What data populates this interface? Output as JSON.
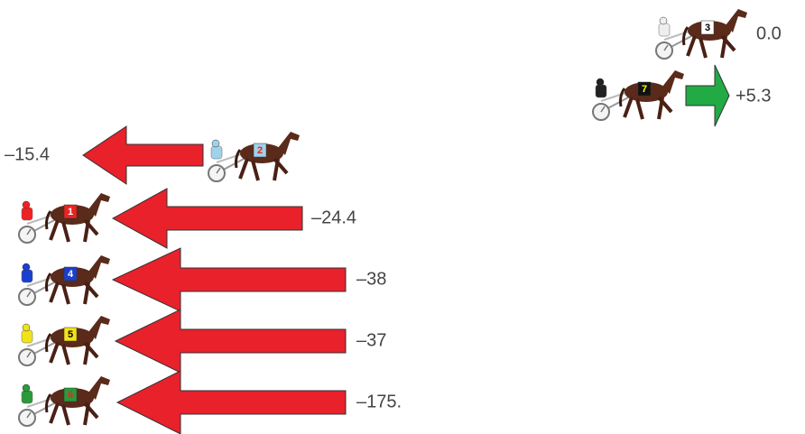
{
  "entries": [
    {
      "number": "3",
      "label": "0.0"
    },
    {
      "number": "7",
      "label": "+5.3"
    },
    {
      "number": "2",
      "label": "–15.4"
    },
    {
      "number": "1",
      "label": "–24.4"
    },
    {
      "number": "4",
      "label": "–38"
    },
    {
      "number": "5",
      "label": "–37"
    },
    {
      "number": "6",
      "label": "–175."
    }
  ]
}
